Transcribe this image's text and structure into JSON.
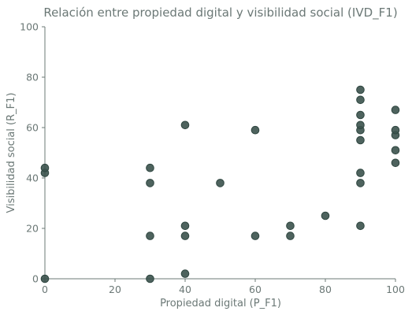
{
  "chart_data": {
    "type": "scatter",
    "title": "Relación entre propiedad digital y visibilidad social (IVD_F1)",
    "xlabel": "Propiedad digital (P_F1)",
    "ylabel": "Visibilidad social (R_F1)",
    "xlim": [
      0,
      100
    ],
    "ylim": [
      0,
      100
    ],
    "xticks": [
      0,
      20,
      40,
      60,
      80,
      100
    ],
    "yticks": [
      0,
      20,
      40,
      60,
      80,
      100
    ],
    "grid": false,
    "point_color": "#3b524c",
    "axis_color": "#6b7876",
    "points": [
      {
        "x": 0,
        "y": 0
      },
      {
        "x": 0,
        "y": 42
      },
      {
        "x": 0,
        "y": 44
      },
      {
        "x": 30,
        "y": 0
      },
      {
        "x": 30,
        "y": 17
      },
      {
        "x": 30,
        "y": 38
      },
      {
        "x": 30,
        "y": 44
      },
      {
        "x": 40,
        "y": 2
      },
      {
        "x": 40,
        "y": 17
      },
      {
        "x": 40,
        "y": 21
      },
      {
        "x": 40,
        "y": 61
      },
      {
        "x": 50,
        "y": 38
      },
      {
        "x": 60,
        "y": 17
      },
      {
        "x": 60,
        "y": 59
      },
      {
        "x": 70,
        "y": 17
      },
      {
        "x": 70,
        "y": 21
      },
      {
        "x": 80,
        "y": 25
      },
      {
        "x": 90,
        "y": 21
      },
      {
        "x": 90,
        "y": 38
      },
      {
        "x": 90,
        "y": 42
      },
      {
        "x": 90,
        "y": 55
      },
      {
        "x": 90,
        "y": 59
      },
      {
        "x": 90,
        "y": 61
      },
      {
        "x": 90,
        "y": 65
      },
      {
        "x": 90,
        "y": 71
      },
      {
        "x": 90,
        "y": 75
      },
      {
        "x": 100,
        "y": 46
      },
      {
        "x": 100,
        "y": 51
      },
      {
        "x": 100,
        "y": 57
      },
      {
        "x": 100,
        "y": 59
      },
      {
        "x": 100,
        "y": 67
      }
    ]
  }
}
